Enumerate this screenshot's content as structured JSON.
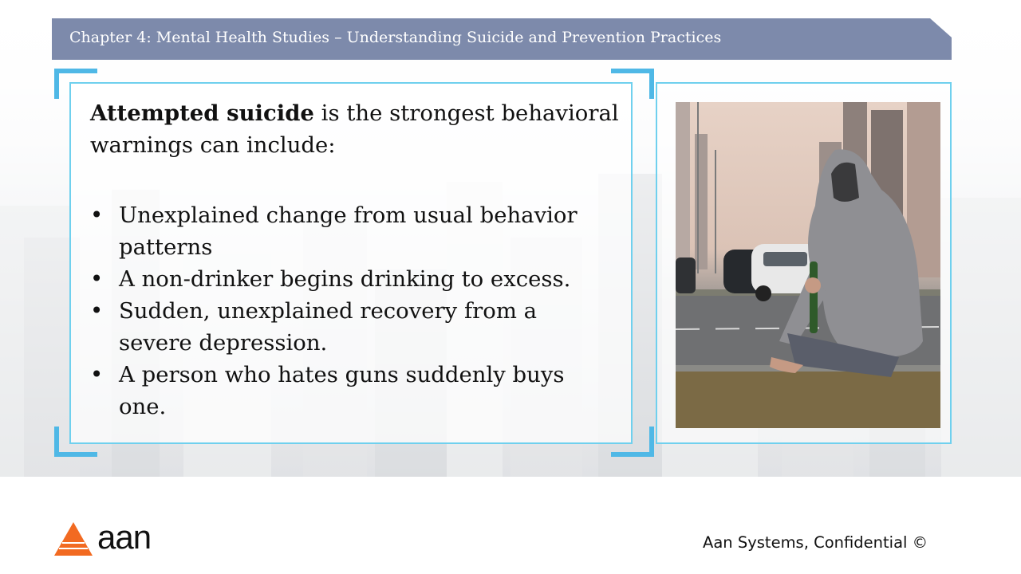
{
  "header": {
    "title": "Chapter 4: Mental Health Studies – Understanding Suicide and Prevention Practices"
  },
  "content": {
    "intro_bold": "Attempted suicide",
    "intro_rest": " is the strongest behavioral warnings can include:",
    "bullets": [
      "Unexplained change from usual behavior patterns",
      "A non-drinker begins drinking to excess.",
      "Sudden, unexplained recovery from a severe depression.",
      "A person who hates guns suddenly buys one."
    ]
  },
  "photo": {
    "subject": "hooded-person-sitting-by-roadside-with-bottle"
  },
  "footer": {
    "confidential": "Aan Systems, Confidential ©",
    "logo_text": "aan"
  },
  "colors": {
    "header": "#7d8aab",
    "frame": "#6fd0ee",
    "corner_accent": "#4fb8e6",
    "logo_orange": "#f26a21"
  }
}
